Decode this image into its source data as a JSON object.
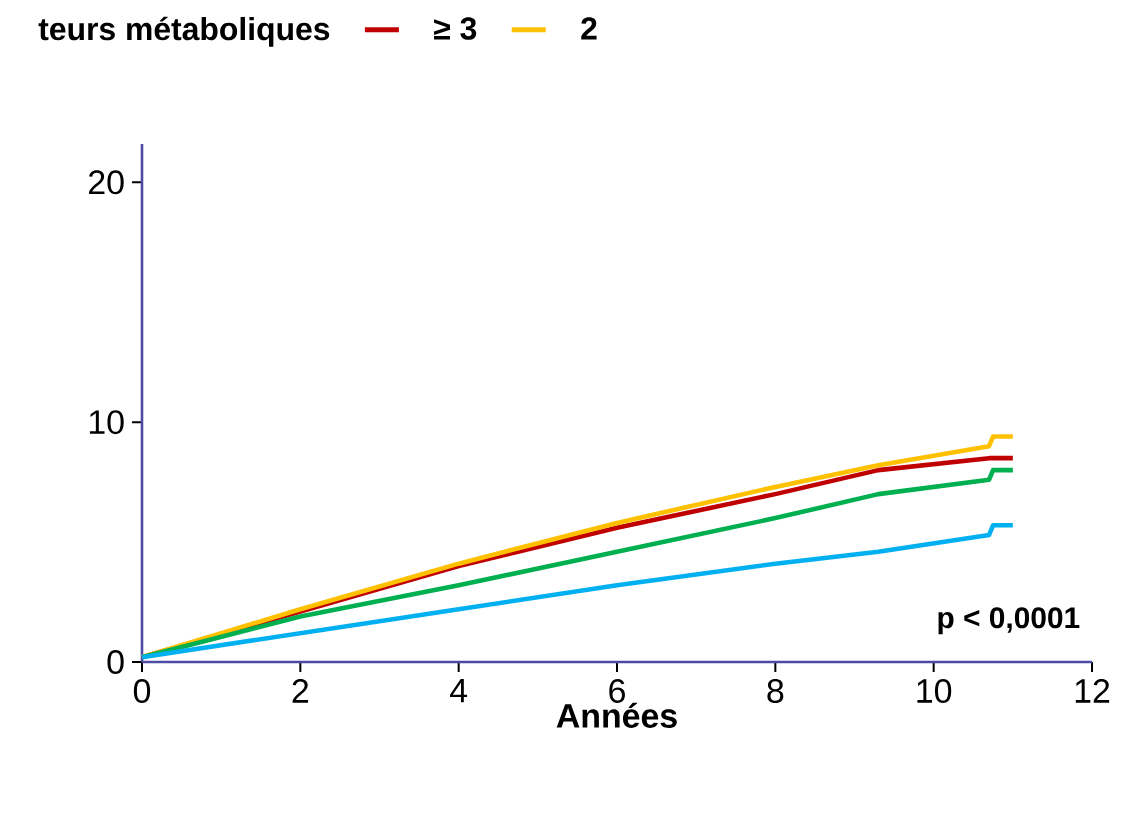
{
  "chart_data": {
    "type": "line",
    "legend_title": "teurs métaboliques",
    "xlabel": "Années",
    "annotations": [
      "p < 0,0001"
    ],
    "xlim": [
      0,
      12
    ],
    "ylim": [
      0,
      21.6
    ],
    "xticks": [
      0,
      2,
      4,
      6,
      8,
      10,
      12
    ],
    "yticks": [
      0,
      10,
      20
    ],
    "legend": "top",
    "grid": false,
    "marker": "none",
    "line_style": "solid",
    "series": [
      {
        "name": "≥ 3",
        "color": "#c00000",
        "x": [
          0,
          2,
          4,
          6,
          8,
          9.3,
          10.7,
          11.0
        ],
        "values": [
          0.2,
          2.1,
          4.0,
          5.6,
          7.0,
          8.0,
          8.5,
          8.5
        ]
      },
      {
        "name": "2",
        "color": "#ffc000",
        "x": [
          0,
          2,
          4,
          6,
          8,
          9.3,
          10.7,
          10.75,
          11.0
        ],
        "values": [
          0.2,
          2.2,
          4.1,
          5.8,
          7.3,
          8.2,
          9.0,
          9.4,
          9.4
        ]
      },
      {
        "color": "#00b050",
        "x": [
          0,
          2,
          4,
          6,
          8,
          9.3,
          10.7,
          10.75,
          11.0
        ],
        "values": [
          0.2,
          1.9,
          3.2,
          4.6,
          6.0,
          7.0,
          7.6,
          8.0,
          8.0
        ]
      },
      {
        "color": "#00b0f0",
        "x": [
          0,
          2,
          4,
          6,
          8,
          9.3,
          10.7,
          10.75,
          11.0
        ],
        "values": [
          0.2,
          1.2,
          2.2,
          3.2,
          4.1,
          4.6,
          5.3,
          5.7,
          5.7
        ]
      }
    ]
  }
}
